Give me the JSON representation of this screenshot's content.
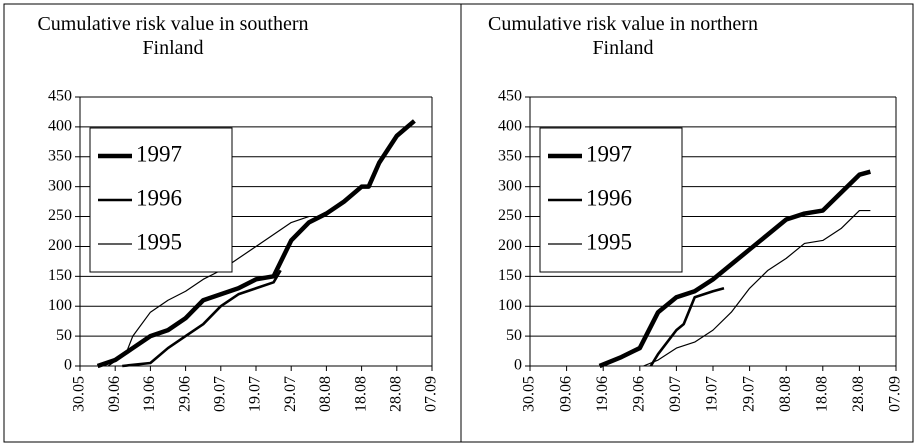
{
  "chart_data": [
    {
      "type": "line",
      "title": "Cumulative risk value in southern Finland",
      "xlim": [
        "30.05",
        "07.09"
      ],
      "xticks": [
        "30.05",
        "09.06",
        "19.06",
        "29.06",
        "09.07",
        "19.07",
        "29.07",
        "08.08",
        "18.08",
        "28.08",
        "07.09"
      ],
      "ylim": [
        0,
        450
      ],
      "yticks": [
        0,
        50,
        100,
        150,
        200,
        250,
        300,
        350,
        400,
        450
      ],
      "grid": true,
      "series": [
        {
          "name": "1997",
          "color": "#000000",
          "x": [
            "04.06",
            "09.06",
            "14.06",
            "19.06",
            "24.06",
            "29.06",
            "04.07",
            "09.07",
            "14.07",
            "19.07",
            "24.07",
            "29.07",
            "03.08",
            "08.08",
            "13.08",
            "18.08",
            "20.08",
            "23.08",
            "28.08",
            "02.09"
          ],
          "values": [
            0,
            10,
            30,
            50,
            60,
            80,
            110,
            120,
            130,
            145,
            150,
            210,
            240,
            255,
            275,
            300,
            300,
            340,
            385,
            410
          ]
        },
        {
          "name": "1996",
          "color": "#000000",
          "x": [
            "11.06",
            "19.06",
            "24.06",
            "29.06",
            "04.07",
            "09.07",
            "14.07",
            "19.07",
            "24.07",
            "26.07"
          ],
          "values": [
            0,
            5,
            30,
            50,
            70,
            100,
            120,
            130,
            140,
            160
          ]
        },
        {
          "name": "1995",
          "color": "#000000",
          "x": [
            "07.06",
            "12.06",
            "14.06",
            "19.06",
            "24.06",
            "29.06",
            "04.07",
            "09.07",
            "14.07",
            "19.07",
            "24.07",
            "29.07",
            "03.08"
          ],
          "values": [
            0,
            20,
            50,
            90,
            110,
            125,
            145,
            160,
            180,
            200,
            220,
            240,
            250
          ]
        }
      ]
    },
    {
      "type": "line",
      "title": "Cumulative risk value in northern Finland",
      "xlim": [
        "30.05",
        "07.09"
      ],
      "xticks": [
        "30.05",
        "09.06",
        "19.06",
        "29.06",
        "09.07",
        "19.07",
        "29.07",
        "08.08",
        "18.08",
        "28.08",
        "07.09"
      ],
      "ylim": [
        0,
        450
      ],
      "yticks": [
        0,
        50,
        100,
        150,
        200,
        250,
        300,
        350,
        400,
        450
      ],
      "grid": true,
      "series": [
        {
          "name": "1997",
          "color": "#000000",
          "x": [
            "18.06",
            "24.06",
            "29.06",
            "04.07",
            "09.07",
            "14.07",
            "19.07",
            "24.07",
            "29.07",
            "03.08",
            "08.08",
            "13.08",
            "18.08",
            "23.08",
            "28.08",
            "31.08"
          ],
          "values": [
            0,
            15,
            30,
            90,
            115,
            125,
            145,
            170,
            195,
            220,
            245,
            255,
            260,
            290,
            320,
            325
          ]
        },
        {
          "name": "1996",
          "color": "#000000",
          "x": [
            "02.07",
            "04.07",
            "09.07",
            "11.07",
            "14.07",
            "19.07",
            "22.07"
          ],
          "values": [
            0,
            20,
            60,
            70,
            115,
            125,
            130
          ]
        },
        {
          "name": "1995",
          "color": "#000000",
          "x": [
            "30.06",
            "04.07",
            "09.07",
            "14.07",
            "19.07",
            "24.07",
            "29.07",
            "03.08",
            "08.08",
            "13.08",
            "18.08",
            "23.08",
            "28.08",
            "31.08"
          ],
          "values": [
            0,
            10,
            30,
            40,
            60,
            90,
            130,
            160,
            180,
            205,
            210,
            230,
            260,
            260
          ]
        }
      ]
    }
  ]
}
